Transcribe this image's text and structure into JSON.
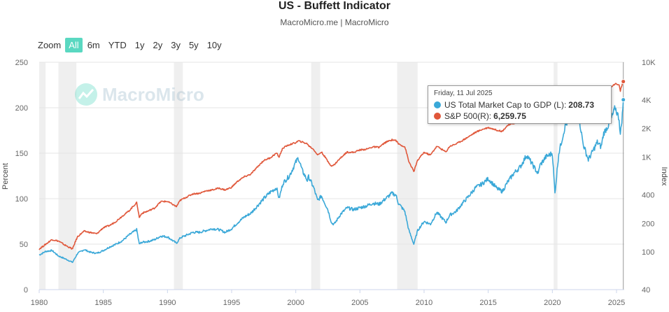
{
  "page": {
    "title": "US - Buffett Indicator",
    "subtitle": "MacroMicro.me | MacroMicro",
    "watermark": "MacroMicro"
  },
  "zoom": {
    "label": "Zoom",
    "buttons": [
      "All",
      "6m",
      "YTD",
      "1y",
      "2y",
      "3y",
      "5y",
      "10y"
    ],
    "active": "All"
  },
  "tooltip": {
    "date": "Friday, 11 Jul 2025",
    "rows": [
      {
        "label": "US Total Market Cap to GDP (L):",
        "value": "208.73",
        "color": "#3aa8d8"
      },
      {
        "label": "S&P 500(R):",
        "value": "6,259.75",
        "color": "#e0573a"
      }
    ]
  },
  "chart_data": {
    "type": "line",
    "title": "US - Buffett Indicator",
    "ylabel": "Percent",
    "y2label": "Index",
    "ylim": [
      0,
      250
    ],
    "y2lim_log": [
      40,
      10000
    ],
    "xlim": [
      1980,
      2025.6
    ],
    "x_ticks": [
      1980,
      1985,
      1990,
      1995,
      2000,
      2005,
      2010,
      2015,
      2020,
      2025
    ],
    "y_ticks": [
      0,
      50,
      100,
      150,
      200,
      250
    ],
    "y2_ticks": [
      40,
      100,
      200,
      400,
      1000,
      2000,
      4000,
      10000
    ],
    "y2_tick_labels": [
      "40",
      "100",
      "200",
      "400",
      "1K",
      "2K",
      "4K",
      "10K"
    ],
    "recessions": [
      [
        1980.0,
        1980.5
      ],
      [
        1981.5,
        1982.9
      ],
      [
        1990.5,
        1991.2
      ],
      [
        2001.2,
        2001.9
      ],
      [
        2007.9,
        2009.5
      ],
      [
        2020.1,
        2020.4
      ]
    ],
    "series": [
      {
        "name": "US Total Market Cap to GDP (L)",
        "axis": "left",
        "color": "#3aa8d8",
        "points": [
          [
            1980,
            38
          ],
          [
            1980.5,
            42
          ],
          [
            1981,
            43
          ],
          [
            1981.5,
            37
          ],
          [
            1982,
            34
          ],
          [
            1982.6,
            30
          ],
          [
            1983,
            40
          ],
          [
            1983.5,
            44
          ],
          [
            1984,
            41
          ],
          [
            1984.5,
            40
          ],
          [
            1985,
            43
          ],
          [
            1985.5,
            47
          ],
          [
            1986,
            50
          ],
          [
            1986.5,
            54
          ],
          [
            1987,
            60
          ],
          [
            1987.6,
            66
          ],
          [
            1987.8,
            50
          ],
          [
            1988,
            52
          ],
          [
            1988.5,
            53
          ],
          [
            1989,
            55
          ],
          [
            1989.5,
            59
          ],
          [
            1990,
            58
          ],
          [
            1990.7,
            51
          ],
          [
            1991,
            57
          ],
          [
            1991.5,
            60
          ],
          [
            1992,
            63
          ],
          [
            1992.5,
            63
          ],
          [
            1993,
            65
          ],
          [
            1993.5,
            67
          ],
          [
            1994,
            66
          ],
          [
            1994.5,
            63
          ],
          [
            1995,
            67
          ],
          [
            1995.5,
            74
          ],
          [
            1996,
            80
          ],
          [
            1996.5,
            84
          ],
          [
            1997,
            92
          ],
          [
            1997.5,
            100
          ],
          [
            1998,
            107
          ],
          [
            1998.5,
            112
          ],
          [
            1998.7,
            100
          ],
          [
            1999,
            117
          ],
          [
            1999.5,
            125
          ],
          [
            2000,
            140
          ],
          [
            2000.2,
            145
          ],
          [
            2000.5,
            131
          ],
          [
            2000.9,
            120
          ],
          [
            2001,
            124
          ],
          [
            2001.4,
            112
          ],
          [
            2001.7,
            98
          ],
          [
            2002,
            103
          ],
          [
            2002.5,
            88
          ],
          [
            2002.8,
            73
          ],
          [
            2003,
            72
          ],
          [
            2003.5,
            83
          ],
          [
            2004,
            90
          ],
          [
            2004.5,
            88
          ],
          [
            2005,
            90
          ],
          [
            2005.5,
            92
          ],
          [
            2006,
            95
          ],
          [
            2006.5,
            94
          ],
          [
            2007,
            100
          ],
          [
            2007.5,
            106
          ],
          [
            2007.8,
            104
          ],
          [
            2008,
            95
          ],
          [
            2008.5,
            86
          ],
          [
            2008.8,
            66
          ],
          [
            2009.2,
            50
          ],
          [
            2009.5,
            65
          ],
          [
            2010,
            75
          ],
          [
            2010.5,
            72
          ],
          [
            2011,
            85
          ],
          [
            2011.7,
            74
          ],
          [
            2012,
            82
          ],
          [
            2012.5,
            86
          ],
          [
            2013,
            95
          ],
          [
            2013.5,
            103
          ],
          [
            2014,
            112
          ],
          [
            2014.5,
            116
          ],
          [
            2015,
            122
          ],
          [
            2015.7,
            111
          ],
          [
            2016.1,
            108
          ],
          [
            2016.5,
            118
          ],
          [
            2017,
            128
          ],
          [
            2017.5,
            135
          ],
          [
            2018,
            148
          ],
          [
            2018.9,
            127
          ],
          [
            2019,
            136
          ],
          [
            2019.5,
            146
          ],
          [
            2020,
            150
          ],
          [
            2020.2,
            106
          ],
          [
            2020.5,
            150
          ],
          [
            2021,
            180
          ],
          [
            2021.5,
            192
          ],
          [
            2021.9,
            205
          ],
          [
            2022.4,
            160
          ],
          [
            2022.8,
            143
          ],
          [
            2023,
            148
          ],
          [
            2023.5,
            162
          ],
          [
            2023.8,
            157
          ],
          [
            2024,
            172
          ],
          [
            2024.5,
            184
          ],
          [
            2024.9,
            200
          ],
          [
            2025.2,
            188
          ],
          [
            2025.3,
            170
          ],
          [
            2025.45,
            192
          ],
          [
            2025.53,
            208.73
          ]
        ]
      },
      {
        "name": "S&P 500(R)",
        "axis": "right",
        "color": "#e0573a",
        "points": [
          [
            1980,
            107
          ],
          [
            1980.5,
            120
          ],
          [
            1981,
            135
          ],
          [
            1981.5,
            130
          ],
          [
            1982,
            118
          ],
          [
            1982.6,
            107
          ],
          [
            1983,
            145
          ],
          [
            1983.5,
            165
          ],
          [
            1984,
            160
          ],
          [
            1984.5,
            155
          ],
          [
            1985,
            180
          ],
          [
            1985.5,
            190
          ],
          [
            1986,
            210
          ],
          [
            1986.5,
            240
          ],
          [
            1987,
            270
          ],
          [
            1987.6,
            330
          ],
          [
            1987.8,
            230
          ],
          [
            1988,
            255
          ],
          [
            1988.5,
            270
          ],
          [
            1989,
            290
          ],
          [
            1989.5,
            340
          ],
          [
            1990,
            340
          ],
          [
            1990.7,
            300
          ],
          [
            1991,
            350
          ],
          [
            1991.5,
            380
          ],
          [
            1992,
            410
          ],
          [
            1992.5,
            415
          ],
          [
            1993,
            440
          ],
          [
            1993.5,
            450
          ],
          [
            1994,
            470
          ],
          [
            1994.5,
            450
          ],
          [
            1995,
            480
          ],
          [
            1995.5,
            560
          ],
          [
            1996,
            620
          ],
          [
            1996.5,
            660
          ],
          [
            1997,
            780
          ],
          [
            1997.5,
            920
          ],
          [
            1998,
            980
          ],
          [
            1998.5,
            1100
          ],
          [
            1998.7,
            1000
          ],
          [
            1999,
            1250
          ],
          [
            1999.5,
            1350
          ],
          [
            2000,
            1420
          ],
          [
            2000.2,
            1480
          ],
          [
            2000.5,
            1440
          ],
          [
            2000.9,
            1380
          ],
          [
            2001,
            1320
          ],
          [
            2001.4,
            1200
          ],
          [
            2001.7,
            1050
          ],
          [
            2002,
            1130
          ],
          [
            2002.5,
            900
          ],
          [
            2002.8,
            800
          ],
          [
            2003,
            830
          ],
          [
            2003.5,
            980
          ],
          [
            2004,
            1130
          ],
          [
            2004.5,
            1120
          ],
          [
            2005,
            1190
          ],
          [
            2005.5,
            1210
          ],
          [
            2006,
            1280
          ],
          [
            2006.5,
            1270
          ],
          [
            2007,
            1430
          ],
          [
            2007.5,
            1520
          ],
          [
            2007.8,
            1500
          ],
          [
            2008,
            1380
          ],
          [
            2008.5,
            1280
          ],
          [
            2008.8,
            900
          ],
          [
            2009.2,
            700
          ],
          [
            2009.5,
            920
          ],
          [
            2010,
            1120
          ],
          [
            2010.5,
            1050
          ],
          [
            2011,
            1300
          ],
          [
            2011.7,
            1130
          ],
          [
            2012,
            1300
          ],
          [
            2012.5,
            1380
          ],
          [
            2013,
            1500
          ],
          [
            2013.5,
            1650
          ],
          [
            2014,
            1820
          ],
          [
            2014.5,
            1950
          ],
          [
            2015,
            2050
          ],
          [
            2015.7,
            1920
          ],
          [
            2016.1,
            1870
          ],
          [
            2016.5,
            2150
          ],
          [
            2017,
            2270
          ],
          [
            2017.5,
            2450
          ],
          [
            2018,
            2800
          ],
          [
            2018.9,
            2400
          ],
          [
            2019,
            2700
          ],
          [
            2019.5,
            2950
          ],
          [
            2020,
            3250
          ],
          [
            2020.2,
            2300
          ],
          [
            2020.5,
            3200
          ],
          [
            2021,
            3750
          ],
          [
            2021.5,
            4300
          ],
          [
            2021.9,
            4700
          ],
          [
            2022.4,
            3800
          ],
          [
            2022.8,
            3600
          ],
          [
            2023,
            3900
          ],
          [
            2023.5,
            4450
          ],
          [
            2023.8,
            4200
          ],
          [
            2024,
            4800
          ],
          [
            2024.5,
            5400
          ],
          [
            2024.9,
            5950
          ],
          [
            2025.2,
            5700
          ],
          [
            2025.3,
            5000
          ],
          [
            2025.45,
            5900
          ],
          [
            2025.53,
            6259.75
          ]
        ]
      }
    ]
  }
}
